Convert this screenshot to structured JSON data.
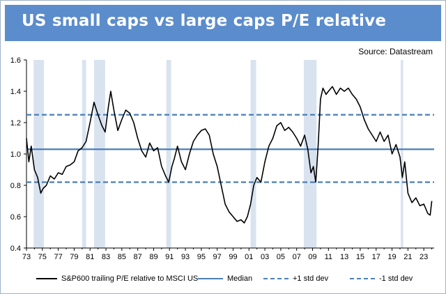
{
  "header": {
    "title": "US small caps vs large caps P/E relative",
    "source": "Source: Datastream"
  },
  "legend": {
    "items": [
      {
        "label": "S&P600 trailing P/E relative to MSCI US",
        "style": "solid-black"
      },
      {
        "label": "Median",
        "style": "solid-blue"
      },
      {
        "label": "+1 std dev",
        "style": "dashed-blue"
      },
      {
        "label": "-1 std dev",
        "style": "dashed-blue"
      }
    ]
  },
  "colors": {
    "series": "#000000",
    "reference": "#4a7eb5",
    "recession": "#d9e3f0",
    "title_bg": "#5b8ccc"
  },
  "chart_data": {
    "type": "line",
    "title": "US small caps vs large caps P/E relative",
    "xlabel": "",
    "ylabel": "",
    "xlim": [
      1973,
      2024.3
    ],
    "ylim": [
      0.4,
      1.6
    ],
    "yticks": [
      0.4,
      0.6,
      0.8,
      1.0,
      1.2,
      1.4,
      1.6
    ],
    "ytick_labels": [
      "0.4",
      "0.6",
      "0.8",
      "1.0",
      "1.2",
      "1.4",
      "1.6"
    ],
    "xtick_labels": [
      "73",
      "75",
      "77",
      "79",
      "81",
      "83",
      "85",
      "87",
      "89",
      "91",
      "93",
      "95",
      "97",
      "99",
      "01",
      "03",
      "05",
      "07",
      "09",
      "11",
      "13",
      "15",
      "17",
      "19",
      "21",
      "23"
    ],
    "reference_lines": [
      {
        "name": "Median",
        "value": 1.03,
        "style": "solid"
      },
      {
        "name": "+1 std dev",
        "value": 1.25,
        "style": "dashed"
      },
      {
        "name": "-1 std dev",
        "value": 0.82,
        "style": "dashed"
      }
    ],
    "recessions": [
      [
        1973.9,
        1975.2
      ],
      [
        1980.0,
        1980.5
      ],
      [
        1981.5,
        1982.9
      ],
      [
        1990.6,
        1991.2
      ],
      [
        2001.2,
        2001.9
      ],
      [
        2007.9,
        2009.5
      ],
      [
        2020.1,
        2020.4
      ]
    ],
    "series": [
      {
        "name": "S&P600 trailing P/E relative to MSCI US",
        "x": [
          1973.0,
          1973.3,
          1973.6,
          1974.0,
          1974.4,
          1974.8,
          1975.1,
          1975.5,
          1976.0,
          1976.5,
          1977.0,
          1977.5,
          1978.0,
          1978.5,
          1979.0,
          1979.5,
          1980.0,
          1980.5,
          1981.0,
          1981.5,
          1982.0,
          1982.5,
          1982.9,
          1983.3,
          1983.6,
          1984.0,
          1984.5,
          1985.0,
          1985.5,
          1986.0,
          1986.5,
          1987.0,
          1987.5,
          1988.0,
          1988.5,
          1989.0,
          1989.5,
          1990.0,
          1990.5,
          1990.9,
          1991.3,
          1991.6,
          1992.0,
          1992.5,
          1993.0,
          1993.5,
          1994.0,
          1994.5,
          1995.0,
          1995.5,
          1996.0,
          1996.5,
          1997.0,
          1997.5,
          1998.0,
          1998.5,
          1999.0,
          1999.5,
          2000.0,
          2000.4,
          2000.8,
          2001.2,
          2001.6,
          2002.0,
          2002.5,
          2003.0,
          2003.5,
          2004.0,
          2004.5,
          2005.0,
          2005.5,
          2006.0,
          2006.5,
          2007.0,
          2007.5,
          2008.0,
          2008.4,
          2008.8,
          2009.1,
          2009.4,
          2009.7,
          2010.0,
          2010.3,
          2010.7,
          2011.0,
          2011.5,
          2012.0,
          2012.5,
          2013.0,
          2013.5,
          2014.0,
          2014.5,
          2015.0,
          2015.5,
          2016.0,
          2016.5,
          2017.0,
          2017.5,
          2018.0,
          2018.5,
          2019.0,
          2019.5,
          2020.0,
          2020.3,
          2020.6,
          2021.0,
          2021.5,
          2022.0,
          2022.5,
          2023.0,
          2023.5,
          2023.8,
          2024.0
        ],
        "values": [
          1.1,
          0.95,
          1.05,
          0.9,
          0.85,
          0.75,
          0.78,
          0.8,
          0.86,
          0.84,
          0.88,
          0.87,
          0.92,
          0.93,
          0.95,
          1.02,
          1.04,
          1.08,
          1.2,
          1.33,
          1.25,
          1.18,
          1.14,
          1.3,
          1.4,
          1.28,
          1.15,
          1.22,
          1.28,
          1.26,
          1.2,
          1.1,
          1.02,
          0.98,
          1.07,
          1.02,
          1.04,
          0.92,
          0.86,
          0.82,
          0.92,
          0.97,
          1.05,
          0.95,
          0.9,
          1.0,
          1.08,
          1.12,
          1.15,
          1.16,
          1.12,
          1.0,
          0.92,
          0.8,
          0.68,
          0.63,
          0.6,
          0.57,
          0.58,
          0.56,
          0.6,
          0.68,
          0.8,
          0.85,
          0.82,
          0.95,
          1.05,
          1.1,
          1.18,
          1.2,
          1.15,
          1.17,
          1.14,
          1.1,
          1.05,
          1.12,
          1.03,
          0.88,
          0.92,
          0.82,
          1.05,
          1.35,
          1.42,
          1.38,
          1.4,
          1.43,
          1.38,
          1.42,
          1.4,
          1.42,
          1.38,
          1.35,
          1.3,
          1.22,
          1.16,
          1.12,
          1.08,
          1.14,
          1.08,
          1.12,
          1.0,
          1.06,
          0.98,
          0.85,
          0.95,
          0.75,
          0.69,
          0.72,
          0.67,
          0.68,
          0.62,
          0.61,
          0.7
        ]
      }
    ]
  }
}
